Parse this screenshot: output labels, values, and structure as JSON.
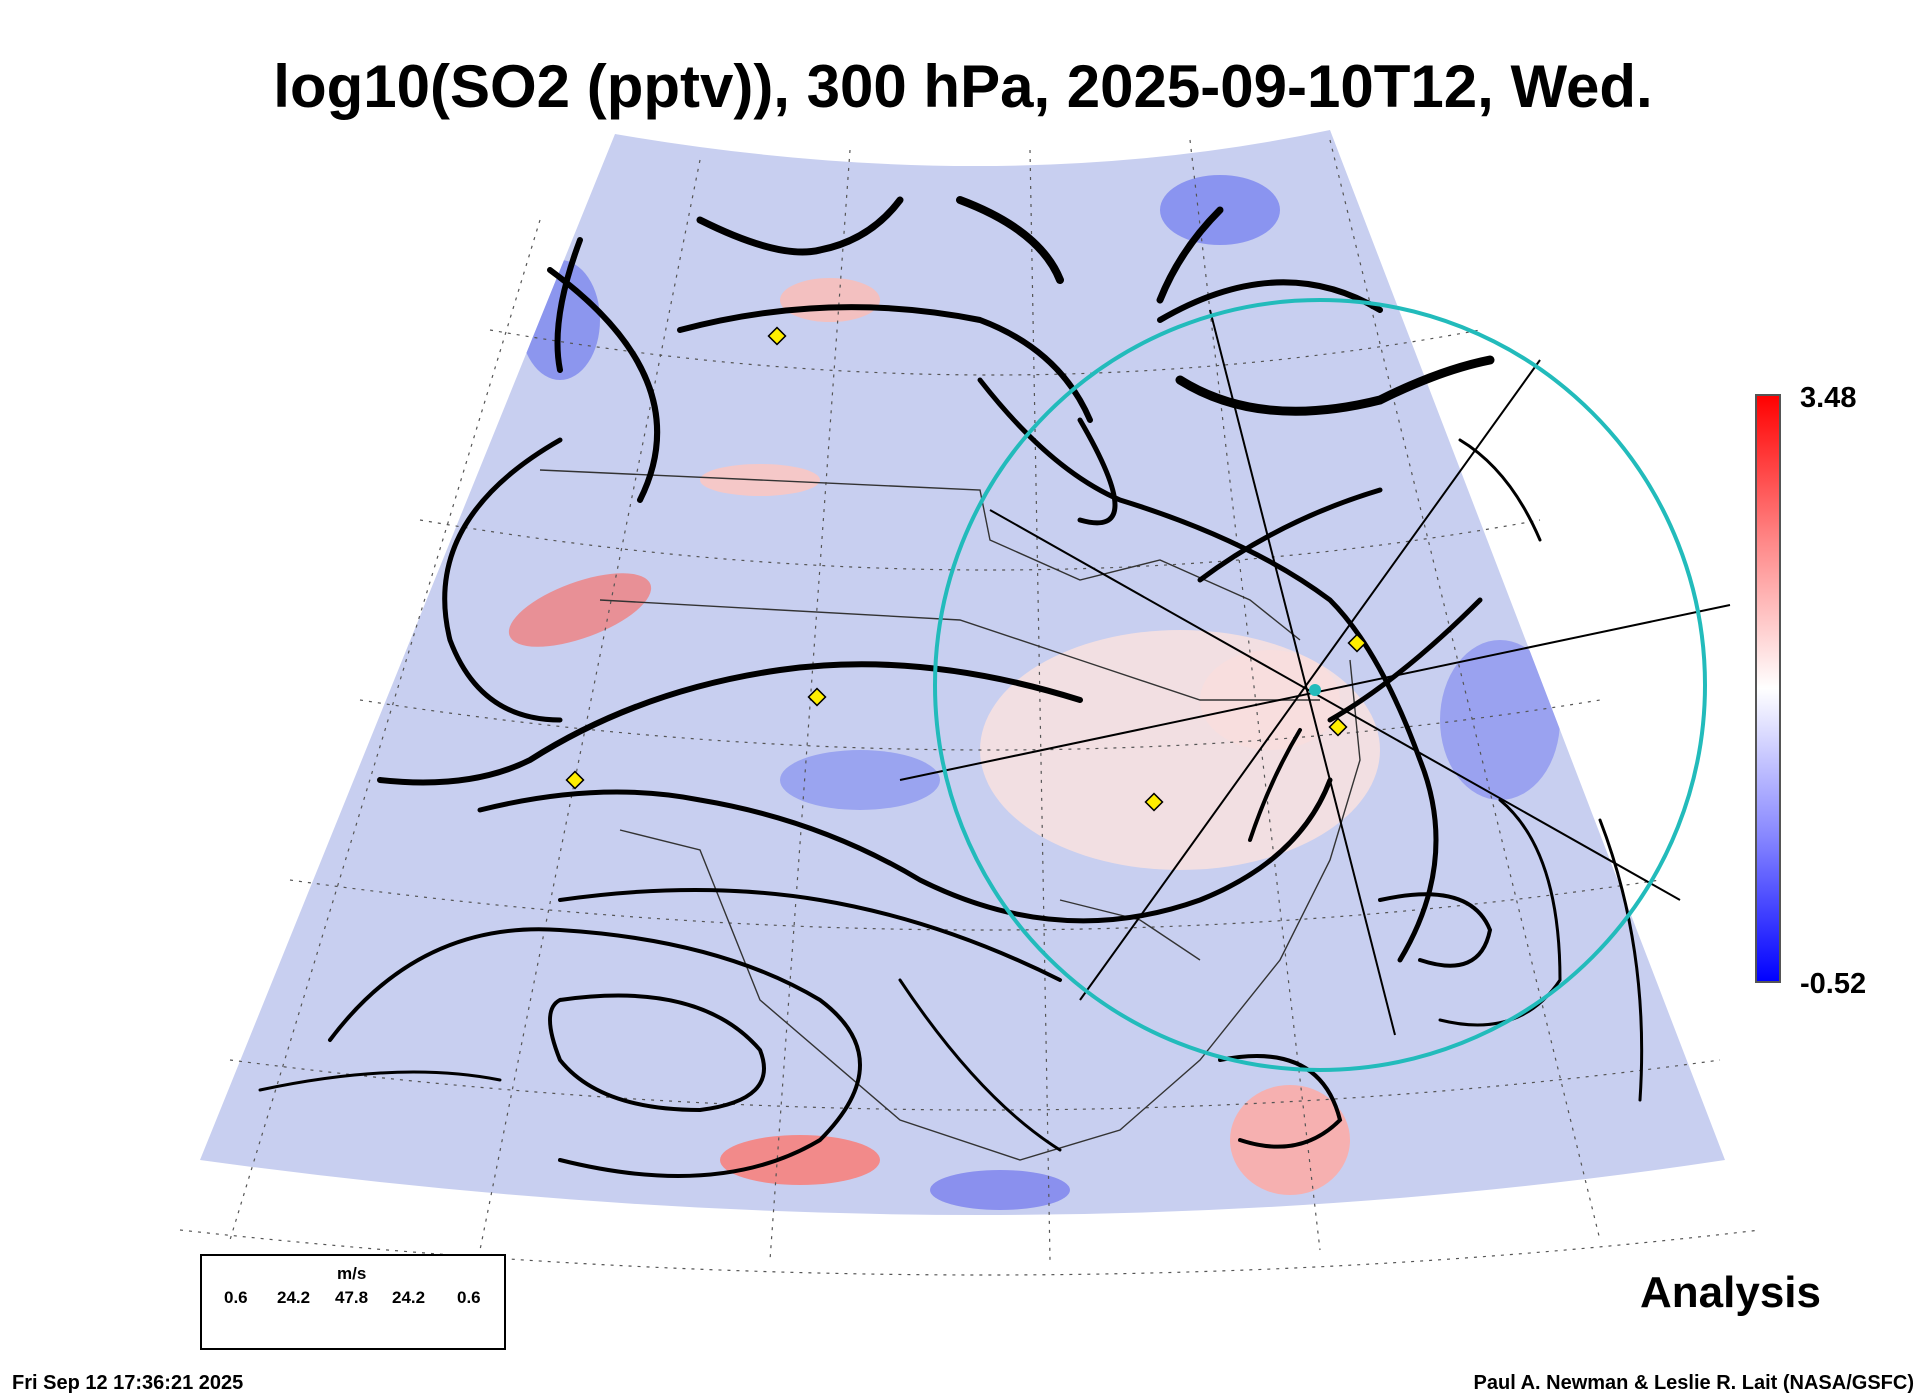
{
  "title": "log10(SO2 (pptv)), 300 hPa, 2025-09-10T12, Wed.",
  "colorbar": {
    "max_label": "3.48",
    "min_label": "-0.52",
    "low_color": "#0000ff",
    "mid_color": "#ffffff",
    "high_color": "#ff0000"
  },
  "wind_legend": {
    "unit": "m/s",
    "ticks": [
      "0.6",
      "24.2",
      "47.8",
      "24.2",
      "0.6"
    ]
  },
  "analysis_label": "Analysis",
  "footer": {
    "timestamp": "Fri Sep 12 17:36:21 2025",
    "credit": "Paul A. Newman & Leslie R. Lait (NASA/GSFC)"
  },
  "colors": {
    "range_ring": "#22bbbb",
    "marker_fill": "#ffee00",
    "streamline": "#000000"
  }
}
